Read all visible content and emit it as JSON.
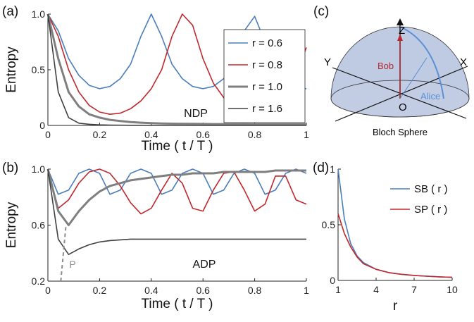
{
  "chart_data": [
    {
      "type": "line",
      "label": "(a)",
      "xlabel": "Time ( t / T )",
      "ylabel": "Entropy",
      "annotations": [
        "NDP"
      ],
      "legend": "upper right",
      "x": [
        0,
        0.04,
        0.08,
        0.12,
        0.16,
        0.2,
        0.24,
        0.28,
        0.32,
        0.36,
        0.4,
        0.44,
        0.48,
        0.52,
        0.56,
        0.6,
        0.64,
        0.68,
        0.72,
        0.76,
        0.8,
        0.84,
        0.88,
        0.92,
        0.96,
        1
      ],
      "xlim": [
        0,
        1
      ],
      "xticks": [
        0,
        0.2,
        0.4,
        0.6,
        0.8,
        1
      ],
      "ylim": [
        0,
        1
      ],
      "yticks": [
        0,
        0.5,
        {
          "value": 1,
          "label": "1.0"
        }
      ],
      "series": [
        {
          "name": "r = 0.6",
          "color": "#4a7ebb",
          "width": 1.6,
          "values": [
            1,
            0.85,
            0.6,
            0.45,
            0.36,
            0.33,
            0.35,
            0.42,
            0.55,
            0.8,
            1,
            0.8,
            0.55,
            0.42,
            0.35,
            0.33,
            0.35,
            0.42,
            0.55,
            0.85,
            0.98,
            0.75,
            0.52,
            0.4,
            0.34,
            0.33
          ]
        },
        {
          "name": "r = 0.8",
          "color": "#c0282d",
          "width": 1.6,
          "values": [
            1,
            0.8,
            0.5,
            0.3,
            0.18,
            0.12,
            0.1,
            0.11,
            0.15,
            0.22,
            0.33,
            0.5,
            0.8,
            1,
            0.9,
            0.6,
            0.38,
            0.25,
            0.16,
            0.11,
            0.1,
            0.12,
            0.18,
            0.28,
            0.45,
            0.7
          ]
        },
        {
          "name": "r = 1.0",
          "color": "#7f7f7f",
          "width": 3,
          "values": [
            1,
            0.6,
            0.3,
            0.17,
            0.1,
            0.07,
            0.05,
            0.04,
            0.03,
            0.025,
            0.02,
            0.018,
            0.016,
            0.015,
            0.014,
            0.013,
            0.012,
            0.012,
            0.011,
            0.011,
            0.01,
            0.01,
            0.01,
            0.01,
            0.01,
            0.01
          ]
        },
        {
          "name": "r = 1.6",
          "color": "#404040",
          "width": 1.6,
          "values": [
            1,
            0.3,
            0.07,
            0.02,
            0.01,
            0.005,
            0.003,
            0.002,
            0.001,
            0.001,
            0,
            0,
            0,
            0,
            0,
            0,
            0,
            0,
            0,
            0,
            0,
            0,
            0,
            0,
            0,
            0
          ]
        }
      ]
    },
    {
      "type": "line",
      "label": "(b)",
      "xlabel": "Time ( t / T )",
      "ylabel": "Entropy",
      "annotations": [
        "ADP",
        "P"
      ],
      "x": [
        0,
        0.04,
        0.08,
        0.12,
        0.16,
        0.2,
        0.24,
        0.28,
        0.32,
        0.36,
        0.4,
        0.44,
        0.48,
        0.52,
        0.56,
        0.6,
        0.64,
        0.68,
        0.72,
        0.76,
        0.8,
        0.84,
        0.88,
        0.92,
        0.96,
        1
      ],
      "xlim": [
        0,
        1
      ],
      "xticks": [
        0,
        0.2,
        0.4,
        0.6,
        0.8,
        1
      ],
      "ylim": [
        0.2,
        1
      ],
      "yticks": [
        0.2,
        0.6,
        {
          "value": 1,
          "label": "1.0"
        }
      ],
      "series": [
        {
          "color": "#4a7ebb",
          "width": 1.6,
          "values": [
            1,
            0.82,
            0.85,
            0.97,
            1,
            0.97,
            0.82,
            0.85,
            0.97,
            1,
            0.97,
            0.82,
            0.85,
            0.97,
            1,
            0.97,
            0.82,
            0.85,
            0.97,
            1,
            0.97,
            0.82,
            0.85,
            0.97,
            1,
            0.97
          ]
        },
        {
          "color": "#c0282d",
          "width": 1.6,
          "values": [
            1,
            0.72,
            0.78,
            0.9,
            0.98,
            1,
            0.97,
            0.88,
            0.76,
            0.68,
            0.72,
            0.85,
            0.97,
            0.9,
            0.72,
            0.7,
            0.85,
            0.97,
            0.98,
            0.85,
            0.7,
            0.75,
            0.95,
            0.95,
            0.78,
            0.75
          ]
        },
        {
          "color": "#7f7f7f",
          "width": 3,
          "values": [
            1,
            0.7,
            0.6,
            0.7,
            0.78,
            0.84,
            0.88,
            0.9,
            0.92,
            0.93,
            0.94,
            0.95,
            0.96,
            0.96,
            0.97,
            0.97,
            0.97,
            0.98,
            0.98,
            0.98,
            0.98,
            0.98,
            0.99,
            0.99,
            0.99,
            0.99
          ]
        },
        {
          "color": "#404040",
          "width": 1.6,
          "values": [
            1,
            0.5,
            0.39,
            0.43,
            0.46,
            0.48,
            0.49,
            0.495,
            0.5,
            0.5,
            0.5,
            0.5,
            0.5,
            0.5,
            0.5,
            0.5,
            0.5,
            0.5,
            0.5,
            0.5,
            0.5,
            0.5,
            0.5,
            0.5,
            0.5,
            0.5
          ]
        },
        {
          "color": "#8c8c8c",
          "width": 2,
          "dashed": true,
          "x": [
            0.05,
            0.06,
            0.07
          ],
          "values": [
            0.2,
            0.4,
            0.6
          ]
        }
      ]
    },
    {
      "type": "line",
      "label": "(d)",
      "xlabel": "r",
      "legend": "upper right",
      "x": [
        1,
        1.5,
        2,
        2.5,
        3,
        4,
        5,
        6,
        7,
        8,
        9,
        10
      ],
      "xlim": [
        1,
        10
      ],
      "xticks": [
        1,
        4,
        7,
        10
      ],
      "ylim": [
        0,
        1
      ],
      "yticks": [
        0,
        0.5,
        1
      ],
      "series": [
        {
          "name": "SB ( r )",
          "color": "#4a7ebb",
          "width": 1.6,
          "values": [
            1,
            0.55,
            0.33,
            0.22,
            0.16,
            0.1,
            0.07,
            0.055,
            0.045,
            0.038,
            0.032,
            0.028
          ]
        },
        {
          "name": "SP ( r )",
          "color": "#c0282d",
          "width": 1.6,
          "values": [
            0.6,
            0.42,
            0.3,
            0.21,
            0.15,
            0.1,
            0.07,
            0.055,
            0.045,
            0.038,
            0.032,
            0.028
          ]
        }
      ]
    }
  ],
  "diagram": {
    "label": "(c)",
    "z": "Z",
    "y": "Y",
    "x": "X",
    "bob": "Bob",
    "alice": "Alice",
    "origin": "O",
    "caption": "Bloch Sphere"
  }
}
